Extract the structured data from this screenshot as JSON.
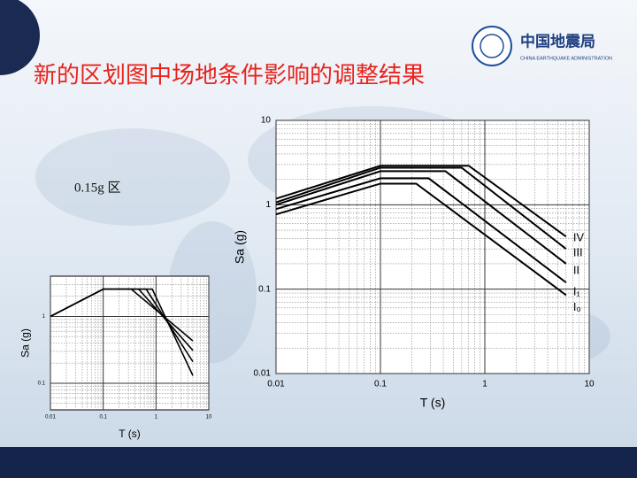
{
  "slide": {
    "title": "新的区划图中场地条件影响的调整结果",
    "label": "0.15g 区",
    "logo": {
      "name": "中国地震局",
      "english": "CHINA EARTHQUAKE ADMINISTRATION"
    }
  },
  "chart_data": [
    {
      "type": "line",
      "x_label": "T (s)",
      "y_label": "Sa (g)",
      "xscale": "log",
      "yscale": "log",
      "xlim": [
        0.01,
        10
      ],
      "ylim": [
        0.04,
        4
      ],
      "xticks": [
        0.01,
        0.1,
        1,
        10
      ],
      "yticks": [
        0.1,
        1
      ],
      "grid": true,
      "minor_grid": true,
      "series": [
        {
          "color": "#000000",
          "x": [
            0.01,
            0.1,
            0.34,
            5
          ],
          "values": [
            1,
            2.56,
            2.56,
            0.43
          ]
        },
        {
          "color": "#000000",
          "x": [
            0.01,
            0.1,
            0.47,
            5
          ],
          "values": [
            1,
            2.56,
            2.56,
            0.31
          ]
        },
        {
          "color": "#000000",
          "x": [
            0.01,
            0.1,
            0.65,
            5
          ],
          "values": [
            1,
            2.56,
            2.56,
            0.21
          ]
        },
        {
          "color": "#000000",
          "x": [
            0.01,
            0.1,
            0.85,
            5
          ],
          "values": [
            1,
            2.56,
            2.56,
            0.13
          ]
        }
      ]
    },
    {
      "type": "line",
      "x_label": "T (s)",
      "y_label": "Sa (g)",
      "xscale": "log",
      "yscale": "log",
      "xlim": [
        0.01,
        10
      ],
      "ylim": [
        0.01,
        10
      ],
      "xticks": [
        0.01,
        0.1,
        1,
        10
      ],
      "yticks": [
        0.01,
        0.1,
        1,
        10
      ],
      "grid": true,
      "minor_grid": true,
      "legend": "line-end",
      "series": [
        {
          "name": "IV",
          "color": "#000000",
          "x": [
            0.01,
            0.1,
            0.7,
            6
          ],
          "values": [
            1.18,
            2.9,
            2.9,
            0.42
          ]
        },
        {
          "name": "III",
          "color": "#000000",
          "x": [
            0.01,
            0.1,
            0.6,
            6
          ],
          "values": [
            1.07,
            2.75,
            2.75,
            0.3
          ]
        },
        {
          "name": "II",
          "color": "#000000",
          "x": [
            0.01,
            0.1,
            0.42,
            6
          ],
          "values": [
            1,
            2.5,
            2.5,
            0.2
          ]
        },
        {
          "name": "I₁",
          "color": "#000000",
          "x": [
            0.01,
            0.1,
            0.29,
            6
          ],
          "values": [
            0.89,
            2.06,
            2.06,
            0.12
          ]
        },
        {
          "name": "I₀",
          "color": "#000000",
          "x": [
            0.01,
            0.1,
            0.22,
            6
          ],
          "values": [
            0.77,
            1.78,
            1.78,
            0.085
          ]
        }
      ]
    }
  ]
}
